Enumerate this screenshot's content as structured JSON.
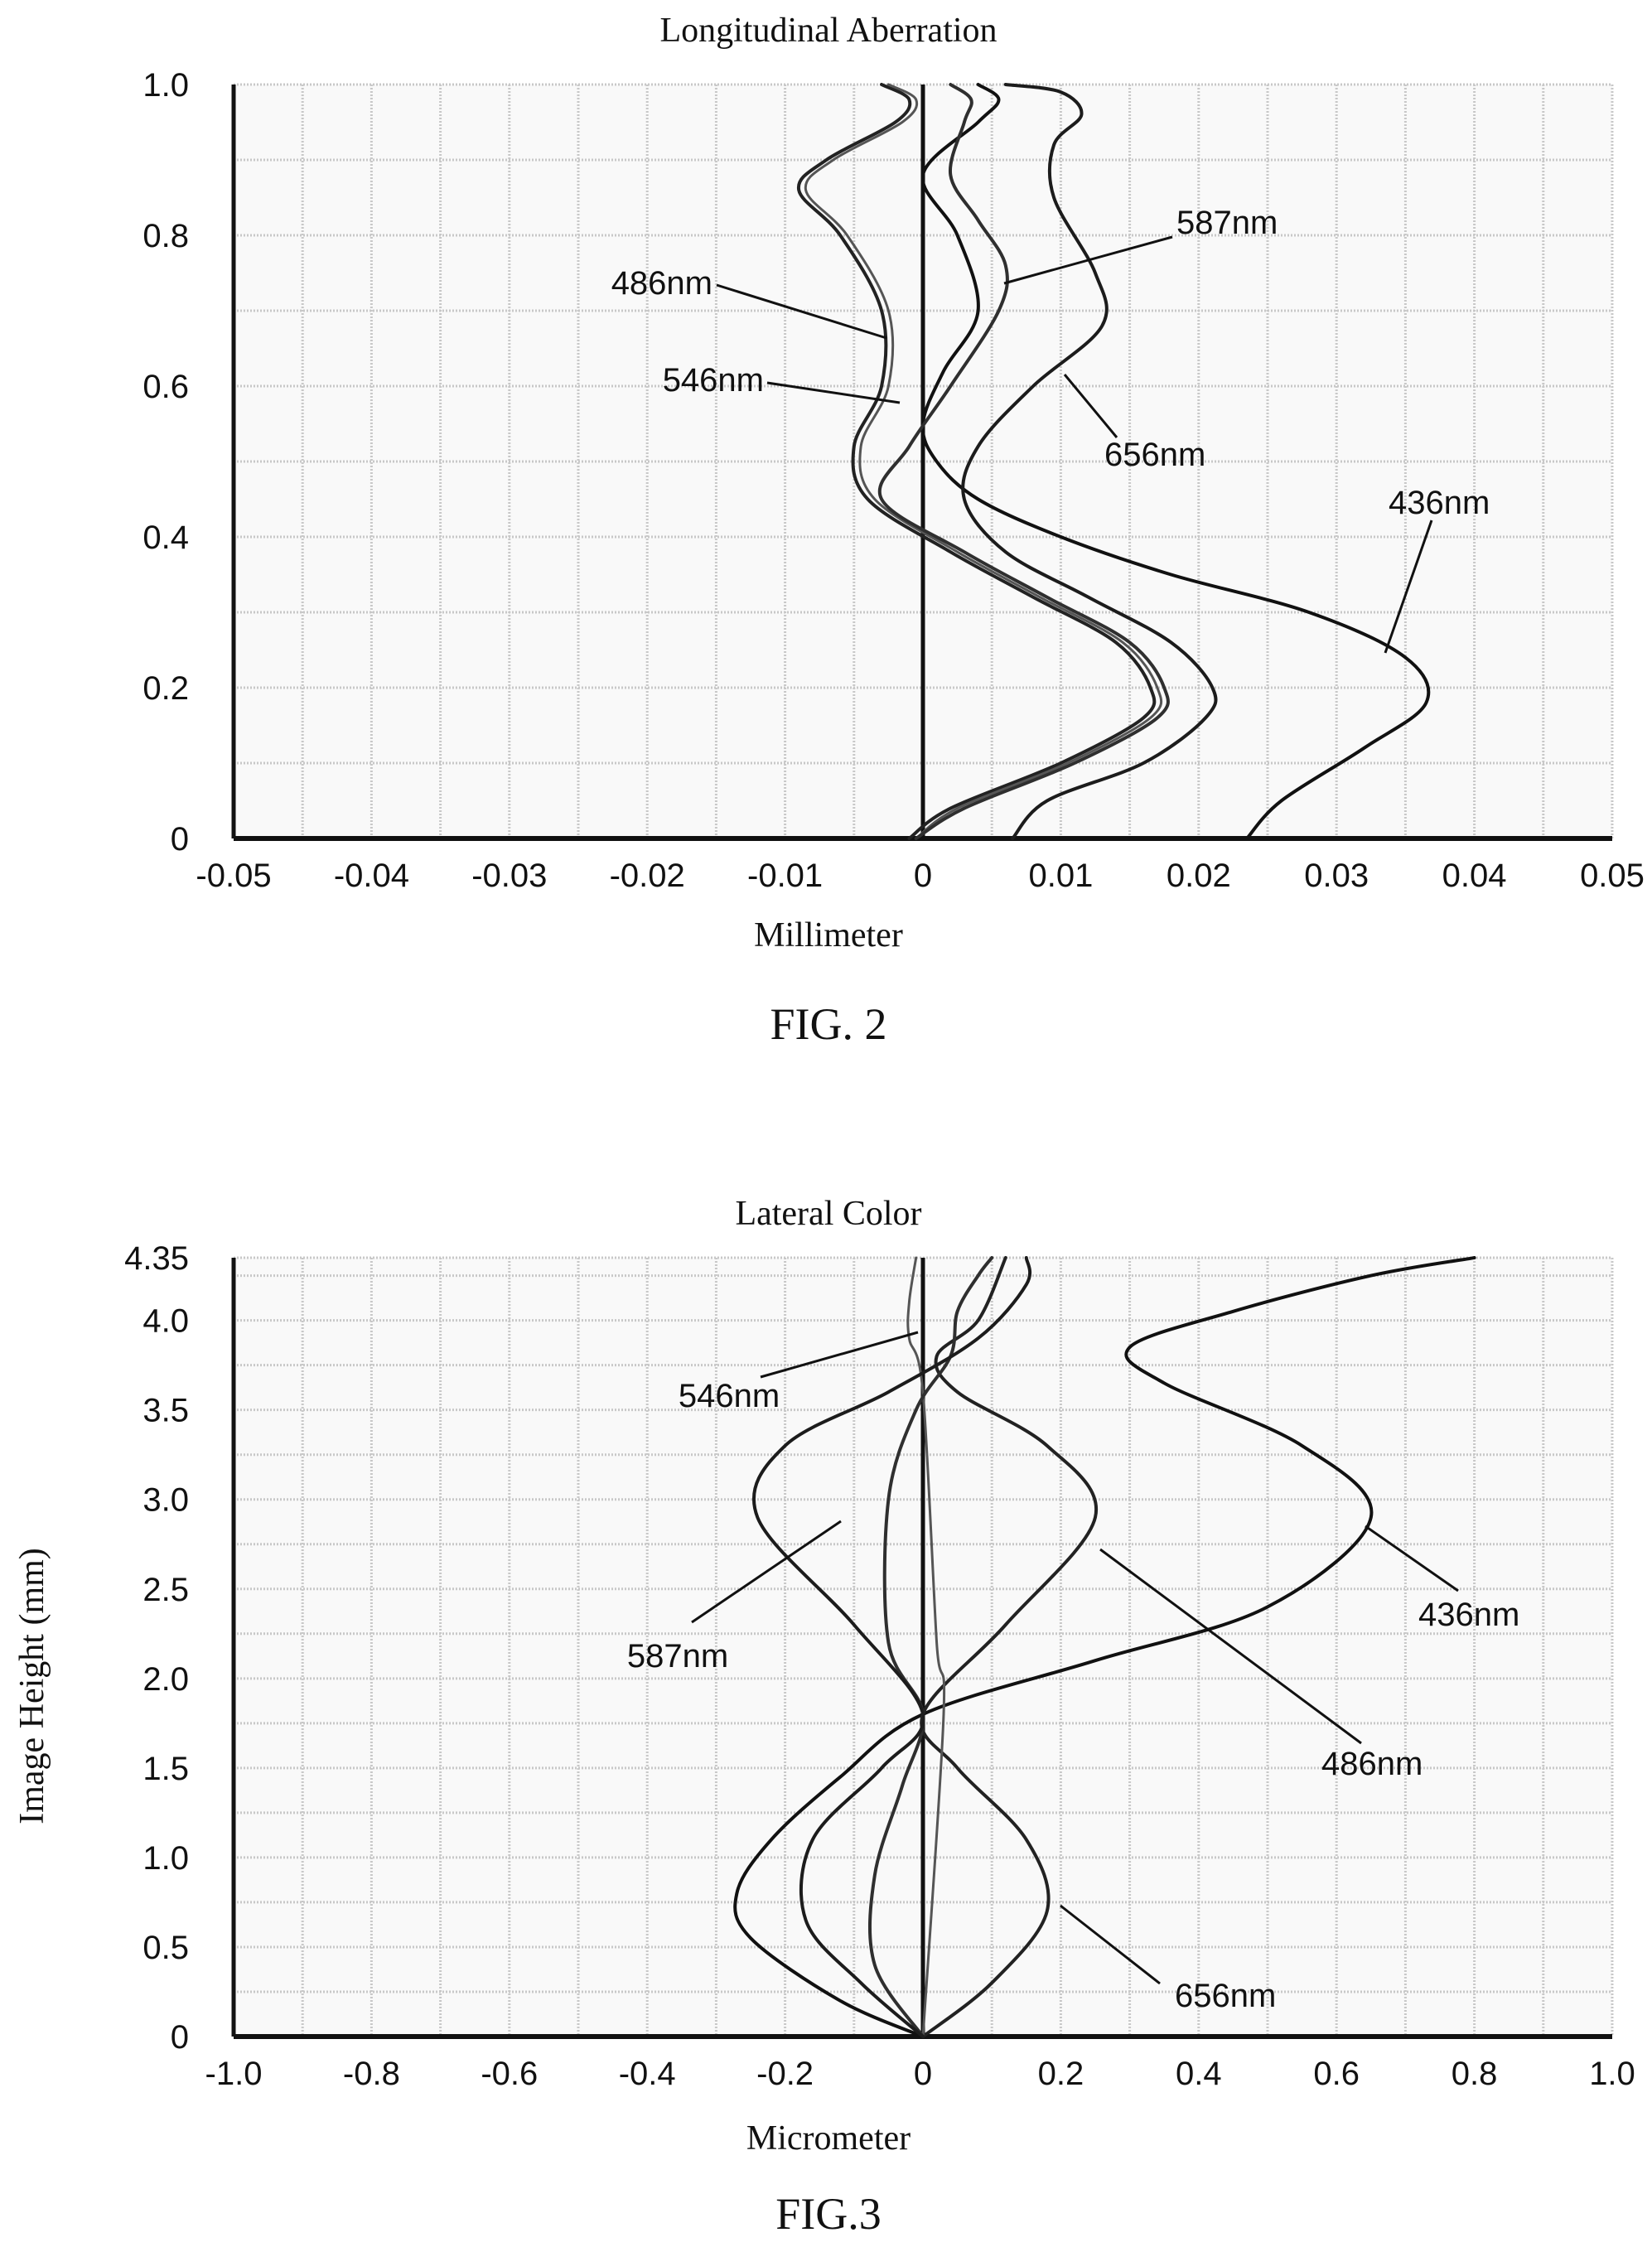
{
  "chart_data": [
    {
      "type": "line",
      "title": "Longitudinal Aberration",
      "xlabel": "Millimeter",
      "ylabel": "",
      "figure_caption": "FIG. 2",
      "xlim": [
        -0.05,
        0.05
      ],
      "ylim": [
        0,
        1.0
      ],
      "x_ticks": [
        "-0.05",
        "-0.04",
        "-0.03",
        "-0.02",
        "-0.01",
        "0",
        "0.01",
        "0.02",
        "0.03",
        "0.04",
        "0.05"
      ],
      "y_ticks": [
        "0",
        "0.2",
        "0.4",
        "0.6",
        "0.8",
        "1.0"
      ],
      "grid": true,
      "series": [
        {
          "name": "436nm",
          "points": [
            [
              0.0235,
              0
            ],
            [
              0.026,
              0.05
            ],
            [
              0.032,
              0.12
            ],
            [
              0.0365,
              0.18
            ],
            [
              0.035,
              0.24
            ],
            [
              0.028,
              0.3
            ],
            [
              0.018,
              0.35
            ],
            [
              0.01,
              0.4
            ],
            [
              0.004,
              0.45
            ],
            [
              0.001,
              0.5
            ],
            [
              0.0,
              0.55
            ],
            [
              0.0015,
              0.62
            ],
            [
              0.004,
              0.7
            ],
            [
              0.0025,
              0.8
            ],
            [
              0.0,
              0.88
            ],
            [
              0.004,
              0.95
            ],
            [
              0.0055,
              0.98
            ],
            [
              0.004,
              1.0
            ]
          ]
        },
        {
          "name": "486nm",
          "points": [
            [
              -0.001,
              0
            ],
            [
              0.002,
              0.04
            ],
            [
              0.01,
              0.1
            ],
            [
              0.016,
              0.16
            ],
            [
              0.0165,
              0.2
            ],
            [
              0.014,
              0.26
            ],
            [
              0.008,
              0.32
            ],
            [
              0.002,
              0.38
            ],
            [
              -0.004,
              0.45
            ],
            [
              -0.005,
              0.52
            ],
            [
              -0.003,
              0.6
            ],
            [
              -0.003,
              0.7
            ],
            [
              -0.006,
              0.8
            ],
            [
              -0.009,
              0.86
            ],
            [
              -0.007,
              0.9
            ],
            [
              -0.002,
              0.95
            ],
            [
              -0.001,
              0.98
            ],
            [
              -0.003,
              1.0
            ]
          ]
        },
        {
          "name": "546nm",
          "points": [
            [
              -0.0005,
              0
            ],
            [
              0.0025,
              0.04
            ],
            [
              0.0105,
              0.1
            ],
            [
              0.0165,
              0.16
            ],
            [
              0.017,
              0.2
            ],
            [
              0.0145,
              0.26
            ],
            [
              0.0085,
              0.32
            ],
            [
              0.0025,
              0.38
            ],
            [
              -0.0035,
              0.45
            ],
            [
              -0.0045,
              0.52
            ],
            [
              -0.0025,
              0.6
            ],
            [
              -0.0025,
              0.7
            ],
            [
              -0.0055,
              0.8
            ],
            [
              -0.0085,
              0.86
            ],
            [
              -0.0065,
              0.9
            ],
            [
              -0.0015,
              0.95
            ],
            [
              -0.0005,
              0.98
            ],
            [
              -0.0025,
              1.0
            ]
          ]
        },
        {
          "name": "587nm",
          "points": [
            [
              -0.0005,
              0
            ],
            [
              0.003,
              0.04
            ],
            [
              0.011,
              0.1
            ],
            [
              0.017,
              0.16
            ],
            [
              0.0175,
              0.2
            ],
            [
              0.015,
              0.26
            ],
            [
              0.009,
              0.32
            ],
            [
              0.003,
              0.38
            ],
            [
              -0.003,
              0.45
            ],
            [
              -0.001,
              0.52
            ],
            [
              0.002,
              0.6
            ],
            [
              0.0055,
              0.7
            ],
            [
              0.006,
              0.76
            ],
            [
              0.004,
              0.82
            ],
            [
              0.002,
              0.88
            ],
            [
              0.003,
              0.95
            ],
            [
              0.0035,
              0.98
            ],
            [
              0.002,
              1.0
            ]
          ]
        },
        {
          "name": "656nm",
          "points": [
            [
              0.0065,
              0
            ],
            [
              0.009,
              0.05
            ],
            [
              0.016,
              0.1
            ],
            [
              0.0205,
              0.16
            ],
            [
              0.021,
              0.2
            ],
            [
              0.018,
              0.26
            ],
            [
              0.012,
              0.32
            ],
            [
              0.006,
              0.38
            ],
            [
              0.003,
              0.45
            ],
            [
              0.004,
              0.52
            ],
            [
              0.008,
              0.6
            ],
            [
              0.013,
              0.68
            ],
            [
              0.0125,
              0.75
            ],
            [
              0.0095,
              0.85
            ],
            [
              0.0095,
              0.92
            ],
            [
              0.0115,
              0.96
            ],
            [
              0.01,
              0.99
            ],
            [
              0.006,
              1.0
            ]
          ]
        }
      ],
      "annotations": [
        "587nm",
        "486nm",
        "546nm",
        "656nm",
        "436nm"
      ]
    },
    {
      "type": "line",
      "title": "Lateral Color",
      "xlabel": "Micrometer",
      "ylabel": "Image Height (mm)",
      "figure_caption": "FIG.3",
      "xlim": [
        -1.0,
        1.0
      ],
      "ylim": [
        0,
        4.35
      ],
      "x_ticks": [
        "-1.0",
        "-0.8",
        "-0.6",
        "-0.4",
        "-0.2",
        "0",
        "0.2",
        "0.4",
        "0.6",
        "0.8",
        "1.0"
      ],
      "y_ticks": [
        "0",
        "0.5",
        "1.0",
        "1.5",
        "2.0",
        "2.5",
        "3.0",
        "3.5",
        "4.0",
        "4.35"
      ],
      "grid": true,
      "series": [
        {
          "name": "436nm",
          "points": [
            [
              0.0,
              0
            ],
            [
              -0.12,
              0.2
            ],
            [
              -0.25,
              0.55
            ],
            [
              -0.27,
              0.8
            ],
            [
              -0.22,
              1.1
            ],
            [
              -0.12,
              1.45
            ],
            [
              0.0,
              1.8
            ],
            [
              0.25,
              2.1
            ],
            [
              0.5,
              2.4
            ],
            [
              0.65,
              2.9
            ],
            [
              0.55,
              3.3
            ],
            [
              0.35,
              3.65
            ],
            [
              0.3,
              3.85
            ],
            [
              0.45,
              4.05
            ],
            [
              0.65,
              4.25
            ],
            [
              0.8,
              4.35
            ]
          ]
        },
        {
          "name": "486nm",
          "points": [
            [
              0.0,
              0
            ],
            [
              0.1,
              0.3
            ],
            [
              0.18,
              0.7
            ],
            [
              0.15,
              1.1
            ],
            [
              0.05,
              1.5
            ],
            [
              0.0,
              1.8
            ],
            [
              0.12,
              2.3
            ],
            [
              0.25,
              2.9
            ],
            [
              0.18,
              3.3
            ],
            [
              0.05,
              3.6
            ],
            [
              0.02,
              3.8
            ],
            [
              0.08,
              4.0
            ],
            [
              0.12,
              4.35
            ]
          ]
        },
        {
          "name": "546nm",
          "points": [
            [
              0.0,
              0
            ],
            [
              0.03,
              1.8
            ],
            [
              0.02,
              2.2
            ],
            [
              0.0,
              3.6
            ],
            [
              -0.02,
              3.9
            ],
            [
              -0.02,
              4.1
            ],
            [
              -0.01,
              4.35
            ]
          ]
        },
        {
          "name": "587nm",
          "points": [
            [
              0.0,
              0
            ],
            [
              -0.07,
              0.4
            ],
            [
              -0.07,
              0.9
            ],
            [
              -0.03,
              1.4
            ],
            [
              0.0,
              1.8
            ],
            [
              -0.05,
              2.2
            ],
            [
              -0.05,
              3.0
            ],
            [
              -0.01,
              3.5
            ],
            [
              0.04,
              3.8
            ],
            [
              0.05,
              4.05
            ],
            [
              0.08,
              4.25
            ],
            [
              0.1,
              4.35
            ]
          ]
        },
        {
          "name": "656nm",
          "points": [
            [
              0.0,
              0
            ],
            [
              -0.09,
              0.3
            ],
            [
              -0.17,
              0.65
            ],
            [
              -0.16,
              1.1
            ],
            [
              -0.06,
              1.5
            ],
            [
              0.0,
              1.8
            ],
            [
              -0.1,
              2.3
            ],
            [
              -0.24,
              2.9
            ],
            [
              -0.2,
              3.3
            ],
            [
              -0.05,
              3.6
            ],
            [
              0.08,
              3.9
            ],
            [
              0.15,
              4.2
            ],
            [
              0.15,
              4.35
            ]
          ]
        }
      ],
      "annotations": [
        "546nm",
        "587nm",
        "436nm",
        "486nm",
        "656nm"
      ]
    }
  ]
}
